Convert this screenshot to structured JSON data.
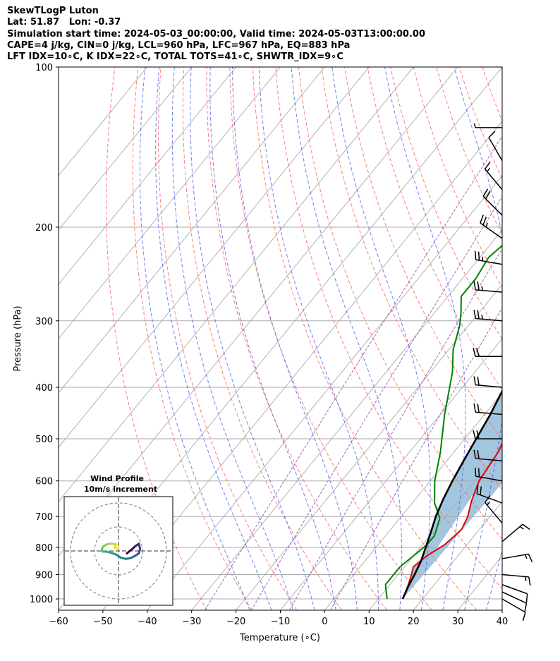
{
  "header": {
    "line1": "SkewTLogP Luton",
    "line2": "Lat: 51.87   Lon: -0.37",
    "line3": "Simulation start time: 2024-05-03_00:00:00, Valid time: 2024-05-03T13:00:00.00",
    "line4": "CAPE=4 j/kg, CIN=0 j/kg, LCL=960 hPa, LFC=967 hPa, EQ=883 hPa",
    "line5": "LFT IDX=10∘C, K IDX=22∘C, TOTAL TOTS=41∘C, SHWTR_IDX=9∘C"
  },
  "inset": {
    "title": "Wind Profile",
    "subtitle": "10m/s increment"
  },
  "colors": {
    "temperature": "#e00000",
    "dewpoint": "#008000",
    "parcel": "#000000",
    "cape_fill": "#a3c6e0",
    "dry_adiabat": "#ff6666",
    "moist_adiabat": "#4455ee",
    "mixing_ratio": "#9b59b6",
    "isotherm": "#aaaaaa"
  },
  "chart_data": {
    "type": "line",
    "title": "",
    "xlabel": "Temperature (∘C)",
    "ylabel": "Pressure (hPa)",
    "xlim": [
      -60,
      40
    ],
    "ylim": [
      1050,
      100
    ],
    "yscale": "log",
    "x_ticks": [
      "−60",
      "−50",
      "−40",
      "−30",
      "−20",
      "−10",
      "0",
      "10",
      "20",
      "30",
      "40"
    ],
    "y_ticks": [
      "100",
      "200",
      "300",
      "400",
      "500",
      "600",
      "700",
      "800",
      "900",
      "1000"
    ],
    "grid": true,
    "series": [
      {
        "role": "temperature",
        "points": [
          [
            20.7,
            100
          ],
          [
            14,
            128
          ],
          [
            3,
            172
          ],
          [
            -5,
            200
          ],
          [
            -8,
            222
          ],
          [
            -10,
            241
          ],
          [
            -11,
            260
          ],
          [
            -11,
            273
          ],
          [
            -3,
            330
          ],
          [
            2,
            375
          ],
          [
            7,
            450
          ],
          [
            10,
            530
          ],
          [
            11,
            600
          ],
          [
            13,
            655
          ],
          [
            15,
            700
          ],
          [
            16,
            740
          ],
          [
            15,
            790
          ],
          [
            13,
            830
          ],
          [
            12,
            870
          ],
          [
            13,
            900
          ],
          [
            14,
            935
          ],
          [
            15,
            975
          ],
          [
            15.5,
            1000
          ]
        ]
      },
      {
        "role": "dewpoint",
        "points": [
          [
            -14,
            100
          ],
          [
            -30,
            180
          ],
          [
            -33,
            189
          ],
          [
            -29,
            201
          ],
          [
            -27,
            215
          ],
          [
            -28,
            228
          ],
          [
            -27,
            250
          ],
          [
            -27,
            270
          ],
          [
            -24,
            290
          ],
          [
            -22,
            306
          ],
          [
            -19,
            340
          ],
          [
            -15,
            375
          ],
          [
            -9,
            450
          ],
          [
            -3,
            530
          ],
          [
            1,
            600
          ],
          [
            5,
            660
          ],
          [
            9,
            705
          ],
          [
            11,
            760
          ],
          [
            11,
            790
          ],
          [
            10,
            830
          ],
          [
            9,
            870
          ],
          [
            9,
            900
          ],
          [
            9,
            940
          ],
          [
            11,
            980
          ],
          [
            12,
            1000
          ]
        ]
      },
      {
        "role": "parcel",
        "points": [
          [
            -1.4,
            100
          ],
          [
            -4.5,
            150
          ],
          [
            -5.4,
            200
          ],
          [
            -4.4,
            250
          ],
          [
            -3.3,
            300
          ],
          [
            -2,
            350
          ],
          [
            -0.6,
            400
          ],
          [
            1.3,
            450
          ],
          [
            2.6,
            500
          ],
          [
            3.8,
            550
          ],
          [
            5,
            600
          ],
          [
            6.3,
            650
          ],
          [
            7.8,
            700
          ],
          [
            9.6,
            750
          ],
          [
            11.2,
            800
          ],
          [
            12.7,
            850
          ],
          [
            13.7,
            900
          ],
          [
            14.5,
            950
          ],
          [
            15.5,
            1000
          ]
        ]
      }
    ],
    "wind_barbs": [
      {
        "p": 130,
        "speed_kt": 5,
        "dir": 270
      },
      {
        "p": 150,
        "speed_kt": 10,
        "dir": 330
      },
      {
        "p": 170,
        "speed_kt": 15,
        "dir": 320
      },
      {
        "p": 190,
        "speed_kt": 20,
        "dir": 315
      },
      {
        "p": 210,
        "speed_kt": 25,
        "dir": 305
      },
      {
        "p": 235,
        "speed_kt": 25,
        "dir": 280
      },
      {
        "p": 265,
        "speed_kt": 25,
        "dir": 275
      },
      {
        "p": 300,
        "speed_kt": 25,
        "dir": 275
      },
      {
        "p": 350,
        "speed_kt": 20,
        "dir": 270
      },
      {
        "p": 400,
        "speed_kt": 20,
        "dir": 275
      },
      {
        "p": 450,
        "speed_kt": 20,
        "dir": 275
      },
      {
        "p": 500,
        "speed_kt": 20,
        "dir": 270
      },
      {
        "p": 550,
        "speed_kt": 20,
        "dir": 275
      },
      {
        "p": 600,
        "speed_kt": 20,
        "dir": 280
      },
      {
        "p": 660,
        "speed_kt": 20,
        "dir": 290
      },
      {
        "p": 720,
        "speed_kt": 15,
        "dir": 320
      },
      {
        "p": 780,
        "speed_kt": 15,
        "dir": 50
      },
      {
        "p": 840,
        "speed_kt": 15,
        "dir": 80
      },
      {
        "p": 900,
        "speed_kt": 15,
        "dir": 95
      },
      {
        "p": 940,
        "speed_kt": 10,
        "dir": 110
      },
      {
        "p": 970,
        "speed_kt": 10,
        "dir": 115
      },
      {
        "p": 1000,
        "speed_kt": 10,
        "dir": 120
      }
    ],
    "hodograph": {
      "ring_increment_ms": 10,
      "points": [
        [
          3.5,
          -1
        ],
        [
          6,
          1
        ],
        [
          7,
          2
        ],
        [
          8.5,
          3
        ],
        [
          9,
          1
        ],
        [
          8.5,
          -1
        ],
        [
          7,
          -2
        ],
        [
          5,
          -3
        ],
        [
          3,
          -3.3
        ],
        [
          1,
          -2.8
        ],
        [
          -1,
          -1.5
        ],
        [
          -3,
          -0.8
        ],
        [
          -5,
          -0.3
        ],
        [
          -6.5,
          -0.3
        ],
        [
          -7,
          0.2
        ],
        [
          -6.5,
          1.8
        ],
        [
          -5,
          2.7
        ],
        [
          -3,
          3.1
        ],
        [
          -1,
          2.8
        ],
        [
          -1.5,
          1.2
        ],
        [
          0,
          1.2
        ]
      ]
    }
  }
}
